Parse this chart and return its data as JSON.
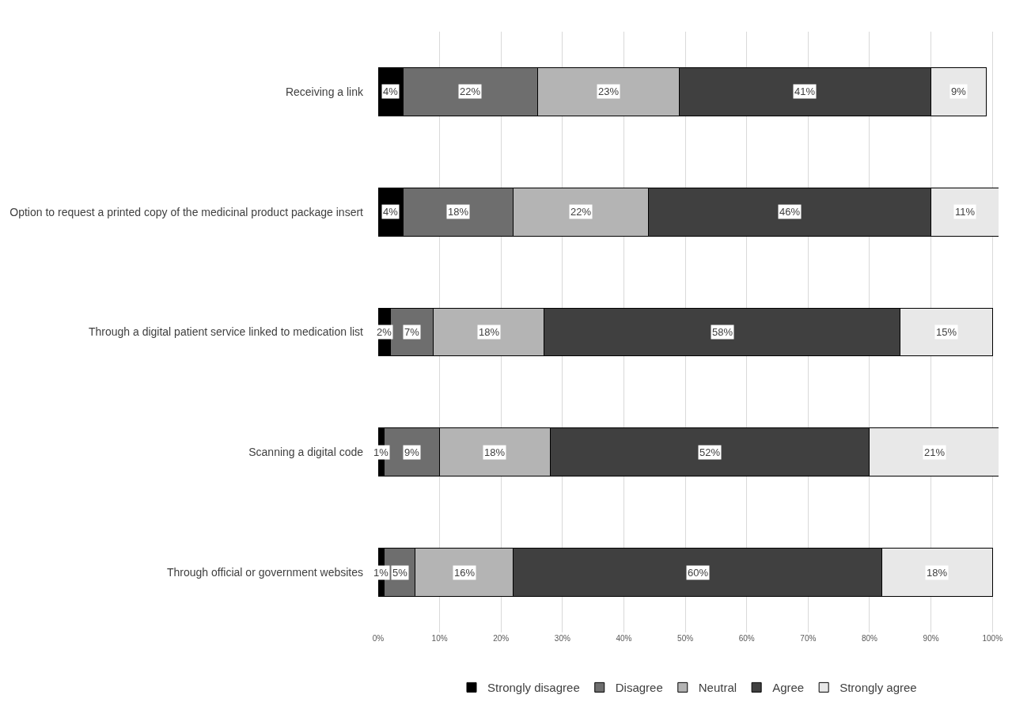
{
  "chart_data": {
    "type": "bar",
    "orientation": "horizontal",
    "stacked": true,
    "categories": [
      "Receiving a link",
      "Option to request a printed copy of the medicinal product package insert",
      "Through a digital patient service linked to medication list",
      "Scanning a digital code",
      "Through official or government websites"
    ],
    "series": [
      {
        "name": "Strongly disagree",
        "color": "#000000",
        "values": [
          4,
          4,
          2,
          1,
          1
        ],
        "value_labels": [
          "4%",
          "4%",
          "2%",
          "1%",
          "1%"
        ]
      },
      {
        "name": "Disagree",
        "color": "#6e6e6e",
        "values": [
          22,
          18,
          7,
          9,
          5
        ],
        "value_labels": [
          "22%",
          "18%",
          "7%",
          "9%",
          "5%"
        ]
      },
      {
        "name": "Neutral",
        "color": "#b4b4b4",
        "values": [
          23,
          22,
          18,
          18,
          16
        ],
        "value_labels": [
          "23%",
          "22%",
          "18%",
          "18%",
          "16%"
        ]
      },
      {
        "name": "Agree",
        "color": "#404040",
        "values": [
          41,
          46,
          58,
          52,
          60
        ],
        "value_labels": [
          "41%",
          "46%",
          "58%",
          "52%",
          "60%"
        ]
      },
      {
        "name": "Strongly agree",
        "color": "#e8e8e8",
        "values": [
          9,
          11,
          15,
          21,
          18
        ],
        "value_labels": [
          "9%",
          "11%",
          "15%",
          "21%",
          "18%"
        ]
      }
    ],
    "xlim": [
      0,
      101
    ],
    "xticks": [
      {
        "value": 0,
        "label": "0%"
      },
      {
        "value": 10,
        "label": "10%"
      },
      {
        "value": 20,
        "label": "20%"
      },
      {
        "value": 30,
        "label": "30%"
      },
      {
        "value": 40,
        "label": "40%"
      },
      {
        "value": 50,
        "label": "50%"
      },
      {
        "value": 60,
        "label": "60%"
      },
      {
        "value": 70,
        "label": "70%"
      },
      {
        "value": 80,
        "label": "80%"
      },
      {
        "value": 90,
        "label": "90%"
      },
      {
        "value": 100,
        "label": "100%"
      }
    ],
    "grid": "x",
    "legend": "bottom"
  }
}
